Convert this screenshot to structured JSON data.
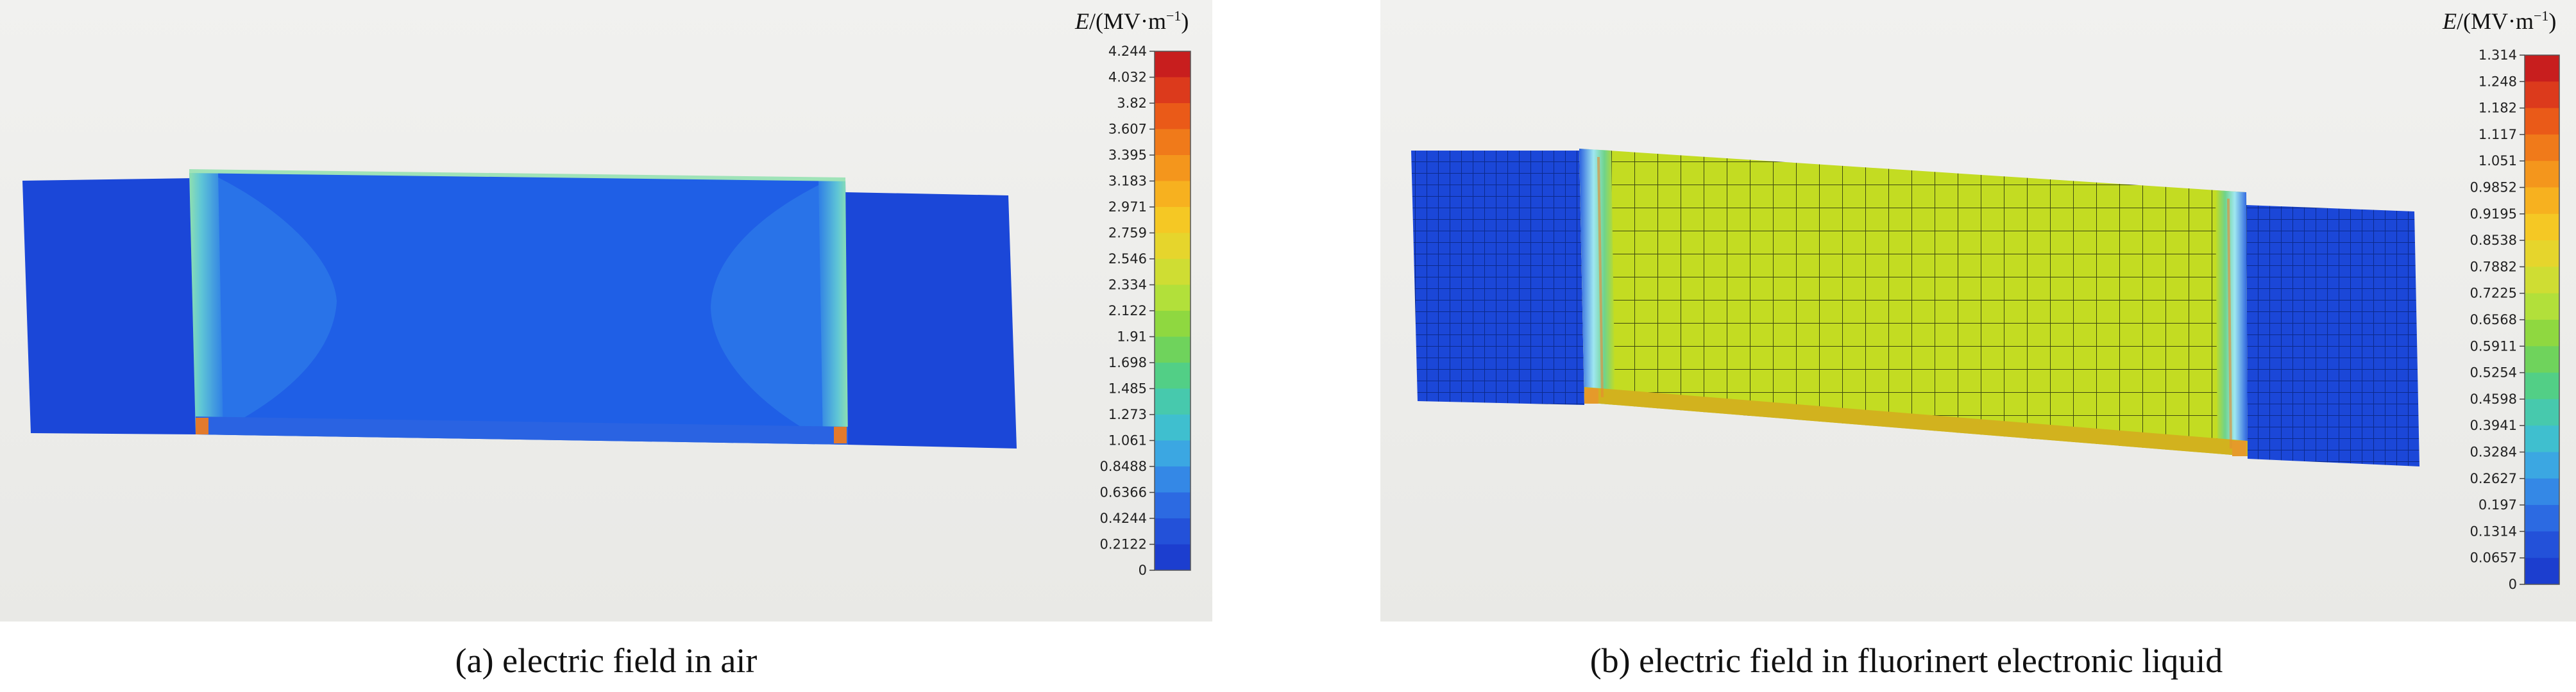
{
  "panels": [
    {
      "id": "a",
      "caption": "(a) electric field in air",
      "colorbar": {
        "title_var": "E",
        "title_unit_open": "/(MV·m",
        "title_sup": "−1",
        "title_unit_close": ")",
        "ticks": [
          "4.244",
          "4.032",
          "3.82",
          "3.607",
          "3.395",
          "3.183",
          "2.971",
          "2.759",
          "2.546",
          "2.334",
          "2.122",
          "1.91",
          "1.698",
          "1.485",
          "1.273",
          "1.061",
          "0.8488",
          "0.6366",
          "0.4244",
          "0.2122",
          "0"
        ]
      }
    },
    {
      "id": "b",
      "caption": "(b) electric field in fluorinert electronic liquid",
      "colorbar": {
        "title_var": "E",
        "title_unit_open": "/(MV·m",
        "title_sup": "−1",
        "title_unit_close": ")",
        "ticks": [
          "1.314",
          "1.248",
          "1.182",
          "1.117",
          "1.051",
          "0.9852",
          "0.9195",
          "0.8538",
          "0.7882",
          "0.7225",
          "0.6568",
          "0.5911",
          "0.5254",
          "0.4598",
          "0.3941",
          "0.3284",
          "0.2627",
          "0.197",
          "0.1314",
          "0.0657",
          "0"
        ]
      }
    }
  ],
  "colors": {
    "scale": [
      "#c81e1e",
      "#dc3a1c",
      "#ea5a18",
      "#f07a1a",
      "#f4961c",
      "#f7b11f",
      "#f5c824",
      "#e6d52c",
      "#cfdd33",
      "#b2e03a",
      "#8fd840",
      "#6fd35c",
      "#52cf86",
      "#47c9ad",
      "#3fbfcf",
      "#3ba7e2",
      "#3488e6",
      "#2c6ae2",
      "#2351d9",
      "#1c3ecf"
    ],
    "deep_blue": "#1b47d8",
    "air_center": "#1f5fe6",
    "liquid_center": "#c3dc22"
  }
}
